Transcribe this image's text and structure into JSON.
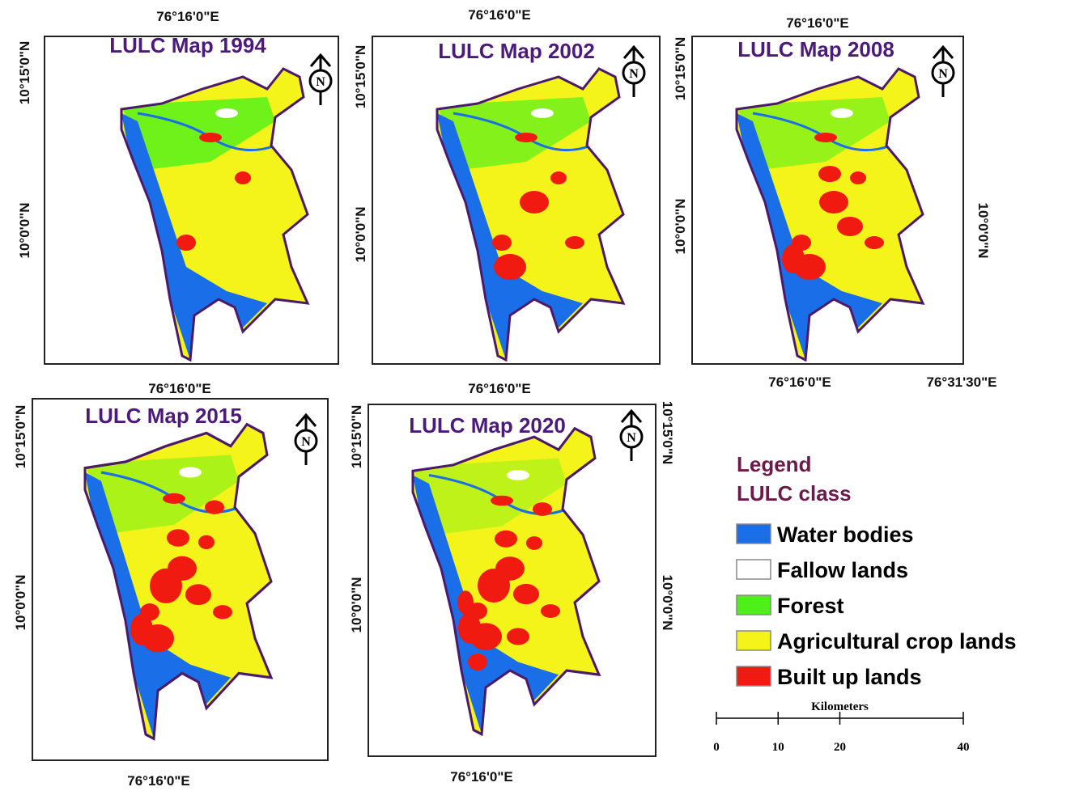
{
  "maps": [
    {
      "title": "LULC Map 1994",
      "labels": [
        "76°16'0\"E",
        "10°15'0\"N",
        "10°0'0\"N"
      ]
    },
    {
      "title": "LULC Map 2002",
      "labels": [
        "76°16'0\"E",
        "10°15'0\"N",
        "10°0'0\"N"
      ]
    },
    {
      "title": "LULC Map 2008",
      "labels": [
        "76°16'0\"E",
        "10°15'0\"N",
        "10°0'0\"N",
        "10°0'0\"N",
        "76°16'0\"E",
        "76°31'30\"E"
      ]
    },
    {
      "title": "LULC Map 2015",
      "labels": [
        "76°16'0\"E",
        "10°15'0\"N",
        "10°0'0\"N",
        "76°16'0\"E"
      ]
    },
    {
      "title": "LULC Map 2020",
      "labels": [
        "76°16'0\"E",
        "10°15'0\"N",
        "10°0'0\"N",
        "10°15'0\"N",
        "10°0'0\"N",
        "76°16'0\"E"
      ]
    }
  ],
  "north_symbol": "N",
  "legend": {
    "title": "Legend",
    "subtitle": "LULC class",
    "items": [
      {
        "label": "Water bodies",
        "color": "#1a6fe8"
      },
      {
        "label": "Fallow lands",
        "color": "#ffffff"
      },
      {
        "label": "Forest",
        "color": "#4ef01a"
      },
      {
        "label": "Agricultural crop lands",
        "color": "#f4f41a"
      },
      {
        "label": "Built up lands",
        "color": "#f01a10"
      }
    ]
  },
  "scale": {
    "title": "Kilometers",
    "ticks": [
      0,
      10,
      20,
      40
    ]
  }
}
